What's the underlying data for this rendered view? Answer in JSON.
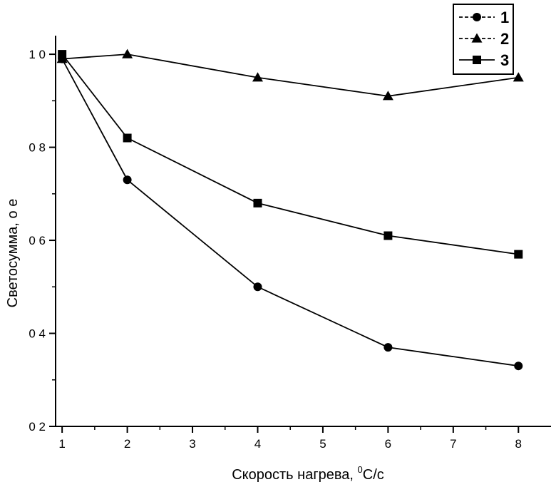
{
  "chart_data": {
    "type": "line",
    "xlabel": "Скорость нагрева, ",
    "xlabel_sup": "0",
    "xlabel_unit": "C/c",
    "ylabel": "Светосумма, о е",
    "xlim": [
      0.9,
      8.5
    ],
    "ylim": [
      0.2,
      1.04
    ],
    "x_ticks": [
      1,
      2,
      3,
      4,
      5,
      6,
      7,
      8
    ],
    "x_tick_labels": [
      "1",
      "2",
      "3",
      "4",
      "5",
      "6",
      "7",
      "8"
    ],
    "y_ticks": [
      0.2,
      0.4,
      0.6,
      0.8,
      1.0
    ],
    "y_tick_labels": [
      "0 2",
      "0 4",
      "0 6",
      "0 8",
      "1 0"
    ],
    "grid": false,
    "legend_position": "top-right",
    "series": [
      {
        "name": "1",
        "marker": "circle",
        "x": [
          1,
          2,
          4,
          6,
          8
        ],
        "values": [
          0.99,
          0.73,
          0.5,
          0.37,
          0.33
        ]
      },
      {
        "name": "2",
        "marker": "triangle",
        "x": [
          1,
          2,
          4,
          6,
          8
        ],
        "values": [
          0.99,
          1.0,
          0.95,
          0.91,
          0.95
        ]
      },
      {
        "name": "3",
        "marker": "square",
        "x": [
          1,
          2,
          4,
          6,
          8
        ],
        "values": [
          1.0,
          0.82,
          0.68,
          0.61,
          0.57
        ]
      }
    ]
  }
}
